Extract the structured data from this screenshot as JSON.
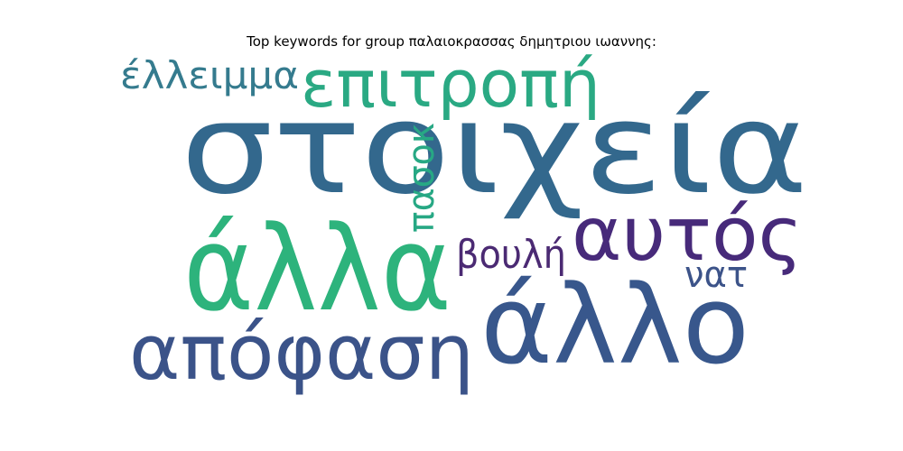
{
  "chart_data": {
    "type": "wordcloud",
    "title": "Top keywords for group παλαιοκρασσας δημητριου ιωαννης:",
    "words": [
      {
        "text": "στοιχεία",
        "color": "#33688d"
      },
      {
        "text": "άλλα",
        "color": "#2db37c"
      },
      {
        "text": "άλλο",
        "color": "#38578c"
      },
      {
        "text": "απόφαση",
        "color": "#3b5389"
      },
      {
        "text": "επιτροπή",
        "color": "#2aa983"
      },
      {
        "text": "αυτός",
        "color": "#472a7a"
      },
      {
        "text": "έλλειμμα",
        "color": "#357b8e"
      },
      {
        "text": "πασοκ",
        "color": "#27a884"
      },
      {
        "text": "βουλή",
        "color": "#4b2a73"
      },
      {
        "text": "νατ",
        "color": "#3c5389"
      }
    ]
  }
}
